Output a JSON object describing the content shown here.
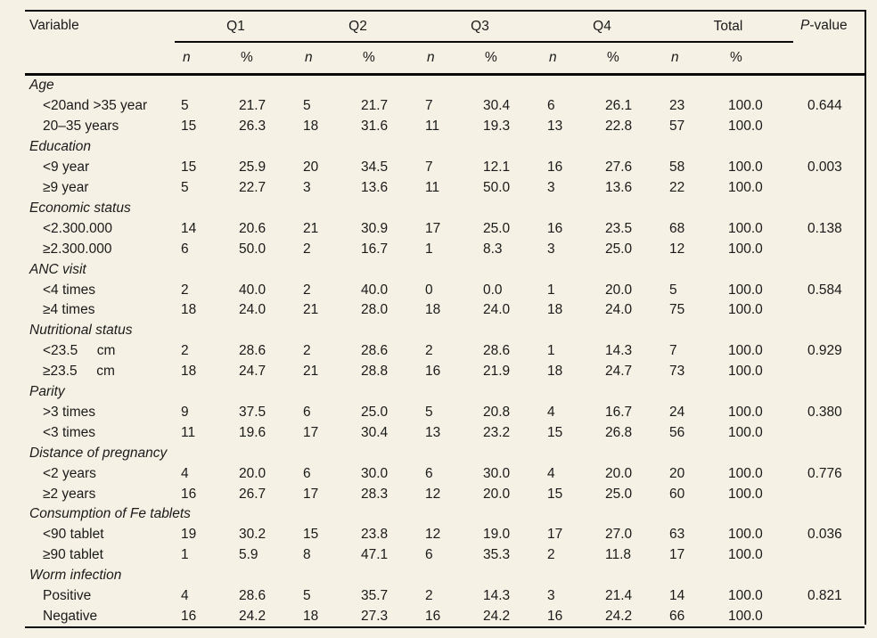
{
  "colors": {
    "background": "#f5f1e4",
    "rule": "#0a0a0a",
    "text": "#1a1a1a"
  },
  "table": {
    "header": {
      "variable": "Variable",
      "groups": [
        "Q1",
        "Q2",
        "Q3",
        "Q4",
        "Total"
      ],
      "sub_n": "n",
      "sub_pct": "%",
      "p_label_italic": "P",
      "p_label_rest": "-value"
    },
    "sections": [
      {
        "label": "Age",
        "rows": [
          {
            "label": "<20and >35 year",
            "values": [
              "5",
              "21.7",
              "5",
              "21.7",
              "7",
              "30.4",
              "6",
              "26.1",
              "23",
              "100.0"
            ],
            "p": "0.644"
          },
          {
            "label": "20–35 years",
            "values": [
              "15",
              "26.3",
              "18",
              "31.6",
              "11",
              "19.3",
              "13",
              "22.8",
              "57",
              "100.0"
            ],
            "p": ""
          }
        ]
      },
      {
        "label": "Education",
        "rows": [
          {
            "label": "<9 year",
            "values": [
              "15",
              "25.9",
              "20",
              "34.5",
              "7",
              "12.1",
              "16",
              "27.6",
              "58",
              "100.0"
            ],
            "p": "0.003"
          },
          {
            "label": "≥9 year",
            "values": [
              "5",
              "22.7",
              "3",
              "13.6",
              "11",
              "50.0",
              "3",
              "13.6",
              "22",
              "100.0"
            ],
            "p": ""
          }
        ]
      },
      {
        "label": "Economic status",
        "rows": [
          {
            "label": "<2.300.000",
            "values": [
              "14",
              "20.6",
              "21",
              "30.9",
              "17",
              "25.0",
              "16",
              "23.5",
              "68",
              "100.0"
            ],
            "p": "0.138"
          },
          {
            "label": "≥2.300.000",
            "values": [
              "6",
              "50.0",
              "2",
              "16.7",
              "1",
              "8.3",
              "3",
              "25.0",
              "12",
              "100.0"
            ],
            "p": ""
          }
        ]
      },
      {
        "label": "ANC visit",
        "rows": [
          {
            "label": "<4 times",
            "values": [
              "2",
              "40.0",
              "2",
              "40.0",
              "0",
              "0.0",
              "1",
              "20.0",
              "5",
              "100.0"
            ],
            "p": "0.584"
          },
          {
            "label": "≥4 times",
            "values": [
              "18",
              "24.0",
              "21",
              "28.0",
              "18",
              "24.0",
              "18",
              "24.0",
              "75",
              "100.0"
            ],
            "p": ""
          }
        ]
      },
      {
        "label": "Nutritional status",
        "rows": [
          {
            "label": "<23.5     cm",
            "values": [
              "2",
              "28.6",
              "2",
              "28.6",
              "2",
              "28.6",
              "1",
              "14.3",
              "7",
              "100.0"
            ],
            "p": "0.929"
          },
          {
            "label": "≥23.5     cm",
            "values": [
              "18",
              "24.7",
              "21",
              "28.8",
              "16",
              "21.9",
              "18",
              "24.7",
              "73",
              "100.0"
            ],
            "p": ""
          }
        ]
      },
      {
        "label": "Parity",
        "rows": [
          {
            "label": ">3 times",
            "values": [
              "9",
              "37.5",
              "6",
              "25.0",
              "5",
              "20.8",
              "4",
              "16.7",
              "24",
              "100.0"
            ],
            "p": "0.380"
          },
          {
            "label": "<3 times",
            "values": [
              "11",
              "19.6",
              "17",
              "30.4",
              "13",
              "23.2",
              "15",
              "26.8",
              "56",
              "100.0"
            ],
            "p": ""
          }
        ]
      },
      {
        "label": "Distance of pregnancy",
        "rows": [
          {
            "label": "<2 years",
            "values": [
              "4",
              "20.0",
              "6",
              "30.0",
              "6",
              "30.0",
              "4",
              "20.0",
              "20",
              "100.0"
            ],
            "p": "0.776"
          },
          {
            "label": "≥2 years",
            "values": [
              "16",
              "26.7",
              "17",
              "28.3",
              "12",
              "20.0",
              "15",
              "25.0",
              "60",
              "100.0"
            ],
            "p": ""
          }
        ]
      },
      {
        "label": "Consumption of Fe tablets",
        "rows": [
          {
            "label": "<90 tablet",
            "values": [
              "19",
              "30.2",
              "15",
              "23.8",
              "12",
              "19.0",
              "17",
              "27.0",
              "63",
              "100.0"
            ],
            "p": "0.036"
          },
          {
            "label": "≥90 tablet",
            "values": [
              "1",
              "5.9",
              "8",
              "47.1",
              "6",
              "35.3",
              "2",
              "11.8",
              "17",
              "100.0"
            ],
            "p": ""
          }
        ]
      },
      {
        "label": "Worm infection",
        "rows": [
          {
            "label": "Positive",
            "values": [
              "4",
              "28.6",
              "5",
              "35.7",
              "2",
              "14.3",
              "3",
              "21.4",
              "14",
              "100.0"
            ],
            "p": "0.821"
          },
          {
            "label": "Negative",
            "values": [
              "16",
              "24.2",
              "18",
              "27.3",
              "16",
              "24.2",
              "16",
              "24.2",
              "66",
              "100.0"
            ],
            "p": ""
          }
        ]
      }
    ]
  }
}
